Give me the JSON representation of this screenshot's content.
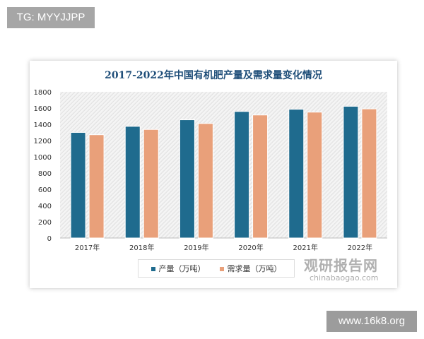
{
  "watermark_tag": "TG: MYYJJPP",
  "site_tag": "www.16k8.org",
  "source_watermark": {
    "cn": "观研报告网",
    "en": "chinabaogao.com"
  },
  "chart_data": {
    "type": "bar",
    "title": "2017-2022年中国有机肥产量及需求量变化情况",
    "categories": [
      "2017年",
      "2018年",
      "2019年",
      "2020年",
      "2021年",
      "2022年"
    ],
    "series": [
      {
        "name": "产量（万吨）",
        "color": "#1f6b8e",
        "values": [
          1300,
          1375,
          1456,
          1558,
          1585,
          1622
        ]
      },
      {
        "name": "需求量（万吨）",
        "color": "#e9a07a",
        "values": [
          1272,
          1337,
          1410,
          1515,
          1550,
          1590
        ]
      }
    ],
    "ylim": [
      0,
      1800
    ],
    "yticks": [
      "0",
      "200",
      "400",
      "600",
      "800",
      "1000",
      "1200",
      "1400",
      "1600",
      "1800"
    ],
    "grid": false,
    "legend": "bottom"
  }
}
